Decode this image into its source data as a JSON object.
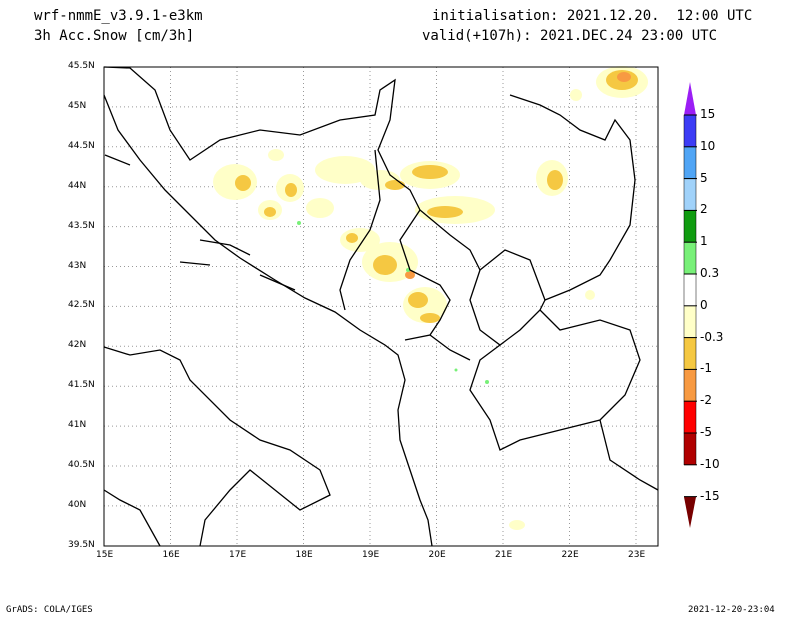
{
  "header": {
    "model": "wrf-nmmE_v3.9.1-e3km",
    "variable": "3h Acc.Snow [cm/3h]",
    "init": "initialisation: 2021.12.20.  12:00 UTC",
    "valid": "valid(+107h): 2021.DEC.24 23:00 UTC"
  },
  "footer": {
    "left": "GrADS: COLA/IGES",
    "right": "2021-12-20-23:04"
  },
  "axes": {
    "lon_labels": [
      "15E",
      "16E",
      "17E",
      "18E",
      "19E",
      "20E",
      "21E",
      "22E",
      "23E"
    ],
    "lat_labels": [
      "45.5N",
      "45N",
      "44.5N",
      "44N",
      "43.5N",
      "43N",
      "42.5N",
      "42N",
      "41.5N",
      "41N",
      "40.5N",
      "40N",
      "39.5N"
    ]
  },
  "colorbar": {
    "labels": [
      "15",
      "10",
      "5",
      "2",
      "1",
      "0.3",
      "0",
      "-0.3",
      "-1",
      "-2",
      "-5",
      "-10",
      "-15"
    ],
    "colors": [
      "#9b1ef5",
      "#3c3cf5",
      "#50a5f5",
      "#a0d2fa",
      "#109c10",
      "#78f078",
      "#ffffff",
      "#ffffc8",
      "#f5c842",
      "#f89a42",
      "#ff0000",
      "#b00000",
      "#780000"
    ]
  }
}
